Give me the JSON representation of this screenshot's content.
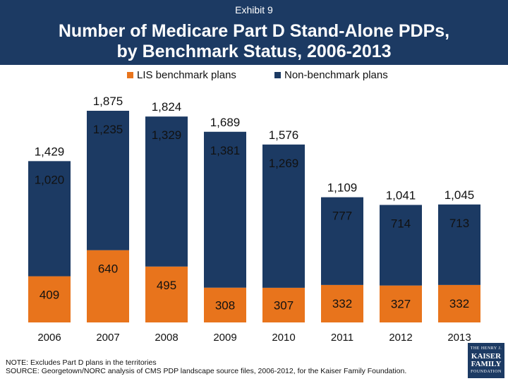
{
  "header": {
    "exhibit": "Exhibit 9",
    "title_line1": "Number of Medicare Part D Stand-Alone PDPs,",
    "title_line2": "by Benchmark Status, 2006-2013"
  },
  "colors": {
    "header_bg": "#1c3a63",
    "benchmark": "#e8741c",
    "non_benchmark": "#1c3a63"
  },
  "chart_data": {
    "type": "bar",
    "stacked": true,
    "title": "Number of Medicare Part D Stand-Alone PDPs, by Benchmark Status, 2006-2013",
    "categories": [
      "2006",
      "2007",
      "2008",
      "2009",
      "2010",
      "2011",
      "2012",
      "2013"
    ],
    "series": [
      {
        "name": "LIS benchmark plans",
        "values": [
          409,
          640,
          495,
          308,
          307,
          332,
          327,
          332
        ],
        "labels": [
          "409",
          "640",
          "495",
          "308",
          "307",
          "332",
          "327",
          "332"
        ]
      },
      {
        "name": "Non-benchmark plans",
        "values": [
          1020,
          1235,
          1329,
          1381,
          1269,
          777,
          714,
          713
        ],
        "labels": [
          "1,020",
          "1,235",
          "1,329",
          "1,381",
          "1,269",
          "777",
          "714",
          "713"
        ]
      }
    ],
    "totals": [
      1429,
      1875,
      1824,
      1689,
      1576,
      1109,
      1041,
      1045
    ],
    "total_labels": [
      "1,429",
      "1,875",
      "1,824",
      "1,689",
      "1,576",
      "1,109",
      "1,041",
      "1,045"
    ],
    "ylim": [
      0,
      1875
    ],
    "xlabel": "",
    "ylabel": "",
    "legend_position": "top"
  },
  "notes": {
    "note": "NOTE: Excludes Part D plans in the territories",
    "source": "SOURCE: Georgetown/NORC analysis of CMS PDP landscape source files, 2006-2012, for the Kaiser Family Foundation."
  },
  "logo": {
    "line1": "THE HENRY J.",
    "line2": "KAISER",
    "line3": "FAMILY",
    "line4": "FOUNDATION"
  }
}
